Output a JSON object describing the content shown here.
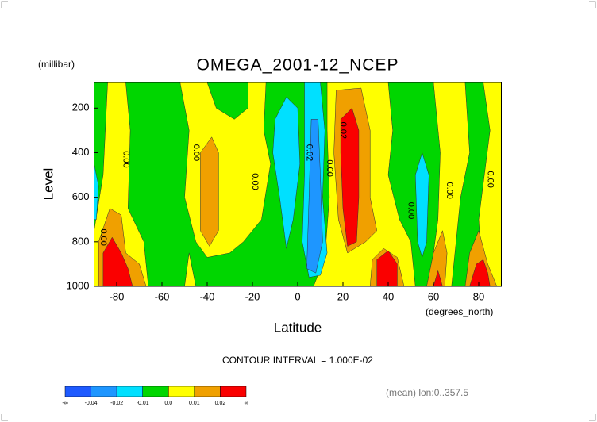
{
  "chart_data": {
    "type": "contour",
    "title": "OMEGA_2001-12_NCEP",
    "y_unit_label": "(millibar)",
    "ylabel": "Level",
    "xlabel": "Latitude",
    "x_unit_label": "(degrees_north)",
    "xlim": [
      -90,
      90
    ],
    "xticks": [
      -80,
      -60,
      -40,
      -20,
      0,
      20,
      40,
      60,
      80
    ],
    "ylim": [
      1000,
      85
    ],
    "yticks": [
      200,
      400,
      600,
      800,
      1000
    ],
    "background_band": 3,
    "regions": [
      {
        "band": 4,
        "lat": [
          -84,
          -76,
          -74,
          -75,
          -68,
          -66,
          -90,
          -90,
          -86
        ],
        "lev": [
          85,
          85,
          300,
          650,
          800,
          1000,
          1000,
          750,
          500
        ]
      },
      {
        "band": 5,
        "lat": [
          -88,
          -88,
          -83,
          -78,
          -76,
          -70,
          -67
        ],
        "lev": [
          1000,
          800,
          650,
          680,
          850,
          900,
          1000
        ]
      },
      {
        "band": 6,
        "lat": [
          -86,
          -86,
          -82,
          -78,
          -75,
          -73
        ],
        "lev": [
          1000,
          850,
          780,
          850,
          920,
          1000
        ]
      },
      {
        "band": 2,
        "lat": [
          -90,
          -88,
          -89,
          -90
        ],
        "lev": [
          450,
          550,
          700,
          700
        ]
      },
      {
        "band": 4,
        "lat": [
          -52,
          -40,
          -36,
          -28,
          -22,
          -22,
          -14,
          -15,
          -12,
          -16,
          -24,
          -30,
          -40,
          -45,
          -50,
          -48
        ],
        "lev": [
          85,
          85,
          200,
          250,
          200,
          85,
          85,
          300,
          450,
          700,
          800,
          850,
          870,
          800,
          600,
          300
        ]
      },
      {
        "band": 4,
        "lat": [
          -50,
          -48,
          -45
        ],
        "lev": [
          1000,
          850,
          1000
        ]
      },
      {
        "band": 5,
        "lat": [
          -43,
          -38,
          -35,
          -35,
          -39,
          -43
        ],
        "lev": [
          400,
          330,
          400,
          750,
          820,
          750
        ]
      },
      {
        "band": 2,
        "lat": [
          -10,
          -5,
          0,
          1,
          -2,
          -5,
          -8,
          -11
        ],
        "lev": [
          250,
          150,
          200,
          450,
          700,
          830,
          600,
          400
        ]
      },
      {
        "band": 4,
        "lat": [
          13,
          40,
          42,
          40,
          45,
          50,
          52,
          7,
          12,
          14,
          13
        ],
        "lev": [
          85,
          85,
          300,
          500,
          700,
          800,
          1000,
          1000,
          870,
          600,
          300
        ]
      },
      {
        "band": 2,
        "lat": [
          3,
          10,
          12,
          11,
          13,
          10,
          5,
          2,
          3
        ],
        "lev": [
          85,
          85,
          300,
          600,
          850,
          950,
          960,
          800,
          500
        ]
      },
      {
        "band": 1,
        "lat": [
          6,
          9,
          10,
          11,
          8,
          4,
          5
        ],
        "lev": [
          250,
          250,
          500,
          800,
          940,
          920,
          600
        ]
      },
      {
        "band": 5,
        "lat": [
          17,
          28,
          32,
          32,
          35,
          30,
          22,
          18,
          16
        ],
        "lev": [
          120,
          110,
          300,
          600,
          750,
          800,
          850,
          700,
          400
        ]
      },
      {
        "band": 6,
        "lat": [
          19,
          24,
          27,
          27,
          26,
          22,
          20,
          19
        ],
        "lev": [
          250,
          200,
          300,
          600,
          800,
          820,
          650,
          400
        ]
      },
      {
        "band": 5,
        "lat": [
          32,
          33,
          38,
          44,
          47
        ],
        "lev": [
          1000,
          880,
          830,
          870,
          1000
        ]
      },
      {
        "band": 6,
        "lat": [
          35,
          35,
          40,
          44,
          44
        ],
        "lev": [
          1000,
          880,
          840,
          900,
          1000
        ]
      },
      {
        "band": 2,
        "lat": [
          52,
          55,
          58,
          57,
          55,
          53
        ],
        "lev": [
          500,
          400,
          500,
          800,
          870,
          800
        ]
      },
      {
        "band": 4,
        "lat": [
          60,
          74,
          76,
          72,
          70,
          68,
          58,
          62,
          63
        ],
        "lev": [
          85,
          85,
          400,
          600,
          800,
          1000,
          1000,
          700,
          400
        ]
      },
      {
        "band": 4,
        "lat": [
          82,
          90,
          90,
          82,
          80,
          85
        ],
        "lev": [
          85,
          85,
          1000,
          1000,
          700,
          300
        ]
      },
      {
        "band": 5,
        "lat": [
          57,
          60,
          64,
          66,
          65
        ],
        "lev": [
          1000,
          850,
          750,
          850,
          1000
        ]
      },
      {
        "band": 5,
        "lat": [
          74,
          76,
          80,
          84,
          88
        ],
        "lev": [
          1000,
          850,
          750,
          900,
          1000
        ]
      },
      {
        "band": 6,
        "lat": [
          60,
          62,
          64
        ],
        "lev": [
          1000,
          930,
          1000
        ]
      },
      {
        "band": 6,
        "lat": [
          76,
          79,
          82,
          84,
          85
        ],
        "lev": [
          1000,
          900,
          880,
          940,
          1000
        ]
      }
    ],
    "contour_labels": [
      {
        "text": "0.00",
        "lat": -76,
        "lev": 430
      },
      {
        "text": "0.00",
        "lat": -45,
        "lev": 400
      },
      {
        "text": "0.00",
        "lat": -19,
        "lev": 530
      },
      {
        "text": "0.00",
        "lat": -86,
        "lev": 780
      },
      {
        "text": "0.02",
        "lat": 5,
        "lev": 400
      },
      {
        "text": "0.00",
        "lat": 14,
        "lev": 470
      },
      {
        "text": "0.02",
        "lat": 20,
        "lev": 300
      },
      {
        "text": "0.00",
        "lat": 50,
        "lev": 660
      },
      {
        "text": "0.00",
        "lat": 67,
        "lev": 570
      },
      {
        "text": "0.00",
        "lat": 85,
        "lev": 520
      }
    ],
    "contour_interval": "CONTOUR INTERVAL = 1.000E-02",
    "footnote": "(mean) lon:0..357.5",
    "colorbar": {
      "colors": [
        "#1e5aff",
        "#1e96ff",
        "#00e0ff",
        "#00d600",
        "#ffff00",
        "#f0a000",
        "#fa0000"
      ],
      "labels": [
        "-∞",
        "-0.04",
        "-0.02",
        "-0.01",
        "0.0",
        "0.01",
        "0.02",
        "∞"
      ]
    }
  }
}
